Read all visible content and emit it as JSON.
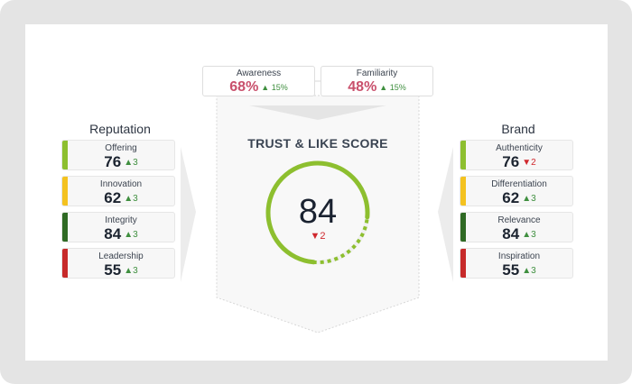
{
  "colors": {
    "green": "#8dbf2f",
    "yellow": "#f4c21f",
    "dark_green": "#2f6a24",
    "red": "#c72a2a",
    "pink_value": "#c9506c",
    "up": "#3f8f3f",
    "down": "#d0282e"
  },
  "top_metrics": [
    {
      "label": "Awareness",
      "value": "68%",
      "delta": "15%",
      "direction": "up"
    },
    {
      "label": "Familiarity",
      "value": "48%",
      "delta": "15%",
      "direction": "up"
    }
  ],
  "reputation": {
    "title": "Reputation",
    "items": [
      {
        "label": "Offering",
        "value": "76",
        "delta": "3",
        "direction": "up",
        "color": "green"
      },
      {
        "label": "Innovation",
        "value": "62",
        "delta": "3",
        "direction": "up",
        "color": "yellow"
      },
      {
        "label": "Integrity",
        "value": "84",
        "delta": "3",
        "direction": "up",
        "color": "dark_green"
      },
      {
        "label": "Leadership",
        "value": "55",
        "delta": "3",
        "direction": "up",
        "color": "red"
      }
    ]
  },
  "brand": {
    "title": "Brand",
    "items": [
      {
        "label": "Authenticity",
        "value": "76",
        "delta": "2",
        "direction": "down",
        "color": "green"
      },
      {
        "label": "Differentiation",
        "value": "62",
        "delta": "3",
        "direction": "up",
        "color": "yellow"
      },
      {
        "label": "Relevance",
        "value": "84",
        "delta": "3",
        "direction": "up",
        "color": "dark_green"
      },
      {
        "label": "Inspiration",
        "value": "55",
        "delta": "3",
        "direction": "up",
        "color": "red"
      }
    ]
  },
  "trust": {
    "title": "TRUST & LIKE SCORE",
    "score": "84",
    "score_fraction": 0.84,
    "delta": "2",
    "direction": "down"
  }
}
